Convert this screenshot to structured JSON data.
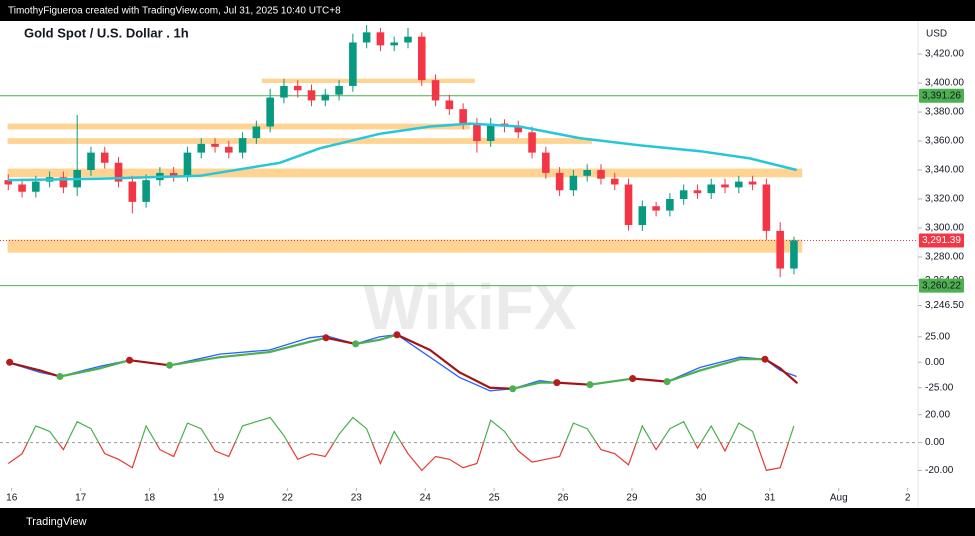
{
  "header": "TimothyFigueroa created with TradingView.com, Jul 31, 2025 10:40 UTC+8",
  "footer": "TradingView",
  "watermark": "WikiFX",
  "chart_data": {
    "type": "candlestick",
    "title": "Gold Spot / U.S. Dollar . 1h",
    "currency": "USD",
    "up_color": "#089981",
    "down_color": "#f23645",
    "xlim": [
      -0.17,
      13.15
    ],
    "xticks": [
      {
        "value": 0,
        "label": "16"
      },
      {
        "value": 1,
        "label": "17"
      },
      {
        "value": 2,
        "label": "18"
      },
      {
        "value": 3,
        "label": "19"
      },
      {
        "value": 4,
        "label": "22"
      },
      {
        "value": 5,
        "label": "23"
      },
      {
        "value": 6,
        "label": "24"
      },
      {
        "value": 7,
        "label": "25"
      },
      {
        "value": 8,
        "label": "26"
      },
      {
        "value": 9,
        "label": "29"
      },
      {
        "value": 10,
        "label": "30"
      },
      {
        "value": 11,
        "label": "31"
      },
      {
        "value": 12,
        "label": "Aug"
      },
      {
        "value": 13,
        "label": "2"
      }
    ],
    "ylim": [
      3236.5,
      3443.5
    ],
    "yticks": [
      {
        "value": 3420,
        "label": "3,420.00"
      },
      {
        "value": 3400,
        "label": "3,400.00"
      },
      {
        "value": 3380,
        "label": "3,380.00"
      },
      {
        "value": 3360,
        "label": "3,360.00"
      },
      {
        "value": 3340,
        "label": "3,340.00"
      },
      {
        "value": 3320,
        "label": "3,320.00"
      },
      {
        "value": 3300,
        "label": "3,300.00"
      },
      {
        "value": 3280,
        "label": "3,280.00"
      },
      {
        "value": 3264,
        "label": "3,264.00"
      },
      {
        "value": 3246.5,
        "label": "3,246.50"
      }
    ],
    "x": [
      -0.05,
      0.15,
      0.35,
      0.55,
      0.75,
      0.95,
      1.15,
      1.35,
      1.55,
      1.75,
      1.95,
      2.15,
      2.35,
      2.55,
      2.75,
      2.95,
      3.15,
      3.35,
      3.55,
      3.75,
      3.95,
      4.15,
      4.35,
      4.55,
      4.75,
      4.95,
      5.15,
      5.35,
      5.55,
      5.75,
      5.95,
      6.15,
      6.35,
      6.55,
      6.75,
      6.95,
      7.15,
      7.35,
      7.55,
      7.75,
      7.95,
      8.15,
      8.35,
      8.55,
      8.75,
      8.95,
      9.15,
      9.35,
      9.55,
      9.75,
      9.95,
      10.15,
      10.35,
      10.55,
      10.75,
      10.95,
      11.15,
      11.35
    ],
    "open": [
      3333,
      3330,
      3325,
      3332,
      3335,
      3328,
      3340,
      3352,
      3345,
      3332,
      3318,
      3333,
      3338,
      3336,
      3352,
      3358,
      3356,
      3352,
      3362,
      3370,
      3390,
      3398,
      3395,
      3388,
      3392,
      3398,
      3428,
      3435,
      3426,
      3428,
      3432,
      3402,
      3388,
      3382,
      3372,
      3360,
      3372,
      3370,
      3366,
      3352,
      3338,
      3326,
      3336,
      3340,
      3334,
      3330,
      3302,
      3315,
      3312,
      3320,
      3326,
      3324,
      3330,
      3328,
      3332,
      3330,
      3298,
      3272
    ],
    "high": [
      3337,
      3334,
      3336,
      3339,
      3339,
      3378,
      3356,
      3356,
      3349,
      3336,
      3337,
      3342,
      3342,
      3356,
      3362,
      3362,
      3360,
      3366,
      3374,
      3396,
      3403,
      3402,
      3399,
      3396,
      3402,
      3434,
      3440,
      3438,
      3432,
      3438,
      3435,
      3406,
      3392,
      3386,
      3376,
      3376,
      3375,
      3374,
      3370,
      3356,
      3342,
      3340,
      3344,
      3344,
      3338,
      3334,
      3319,
      3318,
      3324,
      3330,
      3330,
      3334,
      3334,
      3336,
      3336,
      3334,
      3304,
      3294
    ],
    "low": [
      3326,
      3321,
      3321,
      3328,
      3324,
      3322,
      3336,
      3341,
      3328,
      3310,
      3314,
      3329,
      3332,
      3332,
      3348,
      3352,
      3348,
      3348,
      3358,
      3366,
      3386,
      3390,
      3384,
      3384,
      3388,
      3394,
      3424,
      3422,
      3422,
      3424,
      3398,
      3384,
      3378,
      3368,
      3352,
      3356,
      3366,
      3362,
      3348,
      3334,
      3322,
      3322,
      3332,
      3330,
      3326,
      3298,
      3298,
      3308,
      3308,
      3316,
      3320,
      3320,
      3324,
      3324,
      3326,
      3292,
      3266,
      3268
    ],
    "close": [
      3330,
      3325,
      3332,
      3335,
      3328,
      3340,
      3352,
      3345,
      3332,
      3318,
      3333,
      3338,
      3336,
      3352,
      3358,
      3356,
      3352,
      3362,
      3370,
      3390,
      3398,
      3395,
      3388,
      3392,
      3398,
      3428,
      3435,
      3426,
      3428,
      3432,
      3402,
      3388,
      3382,
      3372,
      3360,
      3372,
      3370,
      3366,
      3352,
      3338,
      3326,
      3336,
      3340,
      3334,
      3330,
      3302,
      3315,
      3312,
      3320,
      3326,
      3324,
      3330,
      3328,
      3332,
      3330,
      3298,
      3272,
      3291.39
    ],
    "zones": [
      {
        "x0": 3.63,
        "x1": 6.72,
        "low": 3400,
        "high": 3403
      },
      {
        "x0": -0.06,
        "x1": 6.65,
        "low": 3368,
        "high": 3372
      },
      {
        "x0": -0.06,
        "x1": 8.42,
        "low": 3358,
        "high": 3362
      },
      {
        "x0": -0.06,
        "x1": 11.47,
        "low": 3335,
        "high": 3341
      },
      {
        "x0": -0.06,
        "x1": 11.47,
        "low": 3283,
        "high": 3292
      }
    ],
    "zone_color": "#ffcc80",
    "levels": [
      {
        "value": 3391.26,
        "label": "3,391.26",
        "color": "#4caf50",
        "style": "solid"
      },
      {
        "value": 3291.39,
        "label": "3,291.39",
        "color": "#f23645",
        "style": "dotted"
      },
      {
        "value": 3260.22,
        "label": "3,260.22",
        "color": "#4caf50",
        "style": "solid"
      }
    ],
    "ma": {
      "color": "#26c6da",
      "x": [
        -0.06,
        1.28,
        2.73,
        3.89,
        4.47,
        5.34,
        6.07,
        6.65,
        7.37,
        8.24,
        9.12,
        9.99,
        10.71,
        11.39
      ],
      "values": [
        3333,
        3334,
        3336,
        3345,
        3355,
        3365,
        3370,
        3372,
        3370,
        3362,
        3357,
        3353,
        3348,
        3340
      ]
    },
    "macd": {
      "ylim": [
        -39,
        39.5
      ],
      "yticks": [
        {
          "value": 25,
          "label": "25.00"
        },
        {
          "value": 0,
          "label": "0.00"
        },
        {
          "value": -25,
          "label": "-25.00"
        }
      ],
      "x": [
        -0.06,
        0.41,
        0.7,
        1.28,
        1.71,
        2.29,
        3.02,
        3.74,
        4.32,
        4.56,
        4.99,
        5.34,
        5.59,
        6.07,
        6.5,
        6.94,
        7.27,
        7.66,
        7.91,
        8.39,
        9.01,
        9.51,
        9.99,
        10.57,
        10.93,
        11.15,
        11.39
      ],
      "macd": [
        0,
        -10,
        -14,
        -4,
        2,
        -3,
        8,
        12,
        24,
        26,
        18,
        25,
        27,
        5,
        -15,
        -28,
        -26,
        -18,
        -20,
        -22,
        -16,
        -19,
        -5,
        5,
        3,
        -8,
        -14
      ],
      "signal": [
        0,
        -8,
        -14,
        -6,
        2,
        -3,
        5,
        10,
        20,
        24,
        18,
        22,
        27,
        12,
        -10,
        -25,
        -26,
        -20,
        -20,
        -22,
        -16,
        -19,
        -8,
        3,
        3,
        -6,
        -20
      ],
      "macd_color": "#2962ff",
      "rise_color": "#4caf50",
      "fall_color": "#a31515",
      "crosses": {
        "x": [
          -0.03,
          0.7,
          1.71,
          2.29,
          4.56,
          4.99,
          5.59,
          7.27,
          7.91,
          8.39,
          9.01,
          9.51,
          10.93
        ],
        "values": [
          0,
          -14,
          2,
          -3,
          24,
          18,
          27,
          -26,
          -20,
          -22,
          -16,
          -19,
          3
        ],
        "colors": [
          "#b71c1c",
          "#4caf50",
          "#b71c1c",
          "#4caf50",
          "#b71c1c",
          "#4caf50",
          "#b71c1c",
          "#4caf50",
          "#b71c1c",
          "#4caf50",
          "#b71c1c",
          "#4caf50",
          "#b71c1c"
        ]
      }
    },
    "osc": {
      "ylim": [
        -32.6,
        27.7
      ],
      "yticks": [
        {
          "value": 20,
          "label": "20.00"
        },
        {
          "value": 0,
          "label": "0.00"
        },
        {
          "value": -20,
          "label": "-20.00"
        }
      ],
      "pos_color": "#4caf50",
      "neg_color": "#e53935",
      "zero_line": true,
      "values": [
        -15,
        -8,
        12,
        8,
        -5,
        15,
        10,
        -8,
        -12,
        -18,
        12,
        -5,
        -10,
        14,
        10,
        -6,
        -10,
        12,
        15,
        18,
        5,
        -12,
        -8,
        -10,
        6,
        18,
        10,
        -15,
        8,
        -8,
        -20,
        -10,
        -12,
        -18,
        -15,
        16,
        8,
        -6,
        -14,
        -12,
        -10,
        14,
        10,
        -5,
        -8,
        -16,
        12,
        -5,
        10,
        15,
        -4,
        12,
        -6,
        14,
        8,
        -20,
        -18,
        12
      ]
    }
  }
}
